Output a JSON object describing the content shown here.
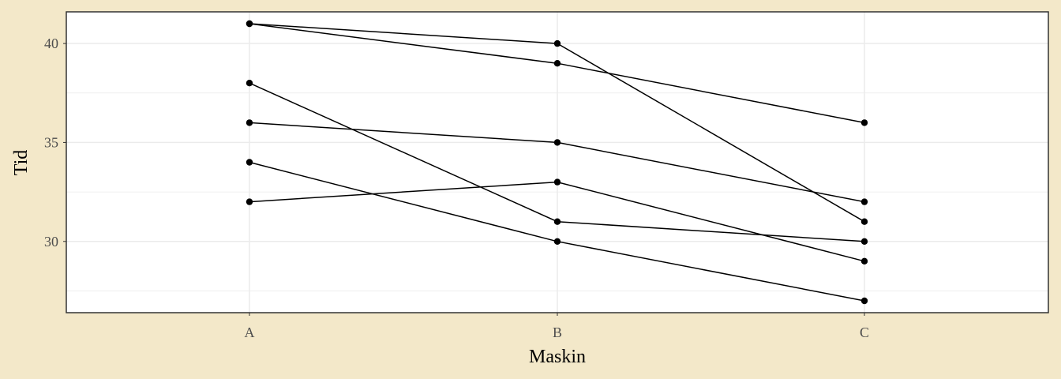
{
  "chart_data": {
    "type": "line",
    "xlabel": "Maskin",
    "ylabel": "Tid",
    "categories": [
      "A",
      "B",
      "C"
    ],
    "ylim": [
      26.4,
      41.6
    ],
    "yticks": [
      30,
      35,
      40
    ],
    "grid": true,
    "colors": {
      "background": "#f3e8c9",
      "panel": "#ffffff",
      "grid": "#ebebeb",
      "line": "#000000",
      "border": "#333333"
    },
    "series": [
      {
        "values": [
          41,
          40,
          31
        ]
      },
      {
        "values": [
          41,
          39,
          36
        ]
      },
      {
        "values": [
          38,
          31,
          30
        ]
      },
      {
        "values": [
          36,
          35,
          32
        ]
      },
      {
        "values": [
          34,
          30,
          27
        ]
      },
      {
        "values": [
          32,
          33,
          29
        ]
      }
    ]
  }
}
